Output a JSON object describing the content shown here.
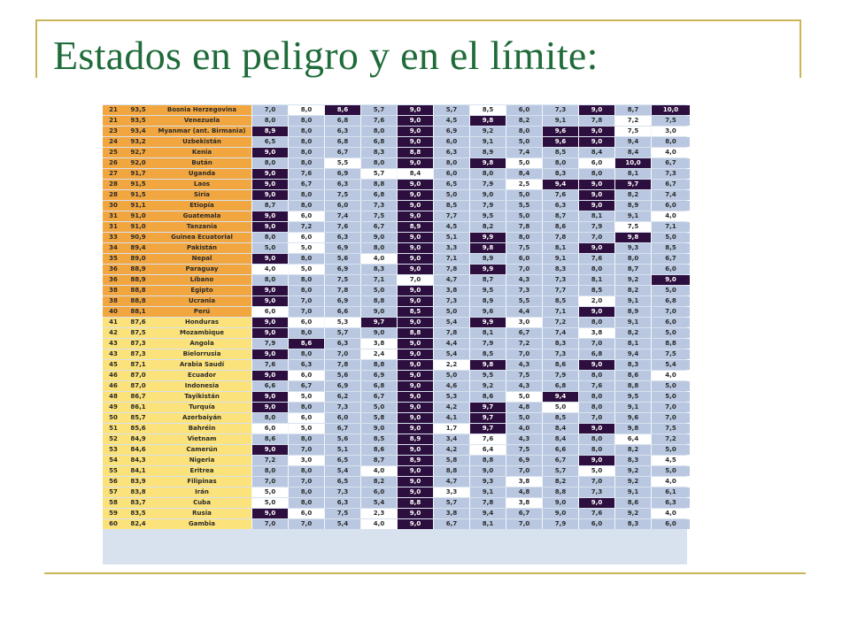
{
  "slide": {
    "title": "Estados en peligro y en el límite:"
  },
  "colors": {
    "title": "#1f6b3a",
    "rule": "#c9b458",
    "group_a": "#f2a640",
    "group_b": "#fbe27a",
    "cell_default": "#b9c8e0",
    "cell_white": "#ffffff",
    "cell_dark": "#2c0f3e"
  },
  "table": {
    "rows": [
      {
        "rank": "21",
        "score": "93,5",
        "country": "Bosnia Herzegovina",
        "group": "a",
        "values": [
          "7,0",
          "8,0",
          "8,6",
          "5,7",
          "9,0",
          "5,7",
          "8,5",
          "6,0",
          "7,3",
          "9,0",
          "8,7",
          "10,0"
        ],
        "shade": "kwdkdkwkkdkd"
      },
      {
        "rank": "21",
        "score": "93,5",
        "country": "Venezuela",
        "group": "a",
        "values": [
          "8,0",
          "8,0",
          "6,8",
          "7,6",
          "9,0",
          "4,5",
          "9,8",
          "8,2",
          "9,1",
          "7,8",
          "7,2",
          "7,5"
        ],
        "shade": "kkkkdkdkkkwk"
      },
      {
        "rank": "23",
        "score": "93,4",
        "country": "Myanmar (ant. Birmania)",
        "group": "a",
        "values": [
          "8,9",
          "8,0",
          "6,3",
          "8,0",
          "9,0",
          "6,9",
          "9,2",
          "8,0",
          "9,6",
          "9,0",
          "7,5",
          "3,0"
        ],
        "shade": "dkkkdkkkddww"
      },
      {
        "rank": "24",
        "score": "93,2",
        "country": "Uzbekistán",
        "group": "a",
        "values": [
          "6,5",
          "8,0",
          "6,8",
          "6,8",
          "9,0",
          "6,0",
          "9,1",
          "5,0",
          "9,6",
          "9,0",
          "9,4",
          "8,0"
        ],
        "shade": "kkkkdkkkddkk"
      },
      {
        "rank": "25",
        "score": "92,7",
        "country": "Kenia",
        "group": "a",
        "values": [
          "9,0",
          "8,0",
          "6,7",
          "8,3",
          "8,8",
          "6,3",
          "8,9",
          "7,4",
          "8,5",
          "8,4",
          "8,4",
          "4,0"
        ],
        "shade": "dkkkdkkkkkkw"
      },
      {
        "rank": "26",
        "score": "92,0",
        "country": "Bután",
        "group": "a",
        "values": [
          "8,0",
          "8,0",
          "5,5",
          "8,0",
          "9,0",
          "8,0",
          "9,8",
          "5,0",
          "8,0",
          "6,0",
          "10,0",
          "6,7"
        ],
        "shade": "kkwkdkdwkwdk"
      },
      {
        "rank": "27",
        "score": "91,7",
        "country": "Uganda",
        "group": "a",
        "values": [
          "9,0",
          "7,6",
          "6,9",
          "5,7",
          "8,4",
          "6,0",
          "8,0",
          "8,4",
          "8,3",
          "8,0",
          "8,1",
          "7,3"
        ],
        "shade": "dkkwwkkkkkkk"
      },
      {
        "rank": "28",
        "score": "91,5",
        "country": "Laos",
        "group": "a",
        "values": [
          "9,0",
          "6,7",
          "6,3",
          "8,8",
          "9,0",
          "6,5",
          "7,9",
          "2,5",
          "9,4",
          "9,0",
          "9,7",
          "6,7"
        ],
        "shade": "dkkkdkkwdddk"
      },
      {
        "rank": "28",
        "score": "91,5",
        "country": "Siria",
        "group": "a",
        "values": [
          "9,0",
          "8,0",
          "7,5",
          "6,8",
          "9,0",
          "5,0",
          "9,0",
          "5,0",
          "7,6",
          "9,0",
          "8,2",
          "7,4"
        ],
        "shade": "dkkkdkkkkdkk"
      },
      {
        "rank": "30",
        "score": "91,1",
        "country": "Etiopía",
        "group": "a",
        "values": [
          "8,7",
          "8,0",
          "6,0",
          "7,3",
          "9,0",
          "8,5",
          "7,9",
          "5,5",
          "6,3",
          "9,0",
          "8,9",
          "6,0"
        ],
        "shade": "kkkkdkkkkdkk"
      },
      {
        "rank": "31",
        "score": "91,0",
        "country": "Guatemala",
        "group": "a",
        "values": [
          "9,0",
          "6,0",
          "7,4",
          "7,5",
          "9,0",
          "7,7",
          "9,5",
          "5,0",
          "8,7",
          "8,1",
          "9,1",
          "4,0"
        ],
        "shade": "dwkkdkkkkkkw"
      },
      {
        "rank": "31",
        "score": "91,0",
        "country": "Tanzania",
        "group": "a",
        "values": [
          "9,0",
          "7,2",
          "7,6",
          "6,7",
          "8,9",
          "4,5",
          "8,2",
          "7,8",
          "8,6",
          "7,9",
          "7,5",
          "7,1"
        ],
        "shade": "dkkkdkkkkkwk"
      },
      {
        "rank": "33",
        "score": "90,9",
        "country": "Guinea Ecuatorial",
        "group": "a",
        "values": [
          "8,0",
          "6,0",
          "6,3",
          "9,0",
          "9,0",
          "5,1",
          "9,9",
          "8,0",
          "7,8",
          "7,0",
          "9,8",
          "5,0"
        ],
        "shade": "kwkkdkdkkkdk"
      },
      {
        "rank": "34",
        "score": "89,4",
        "country": "Pakistán",
        "group": "a",
        "values": [
          "5,0",
          "5,0",
          "6,9",
          "8,0",
          "9,0",
          "3,3",
          "9,8",
          "7,5",
          "8,1",
          "9,0",
          "9,3",
          "8,5"
        ],
        "shade": "kwkkdkdkkdkk"
      },
      {
        "rank": "35",
        "score": "89,0",
        "country": "Nepal",
        "group": "a",
        "values": [
          "9,0",
          "8,0",
          "5,6",
          "4,0",
          "9,0",
          "7,1",
          "8,9",
          "6,0",
          "9,1",
          "7,6",
          "8,0",
          "6,7"
        ],
        "shade": "dkkwdkkkkkkk"
      },
      {
        "rank": "36",
        "score": "88,9",
        "country": "Paraguay",
        "group": "a",
        "values": [
          "4,0",
          "5,0",
          "6,9",
          "8,3",
          "9,0",
          "7,8",
          "9,9",
          "7,0",
          "8,3",
          "8,0",
          "8,7",
          "6,0"
        ],
        "shade": "wwkkdkdkkkkk"
      },
      {
        "rank": "36",
        "score": "88,9",
        "country": "Líbano",
        "group": "a",
        "values": [
          "8,0",
          "8,0",
          "7,5",
          "7,1",
          "7,0",
          "4,7",
          "8,7",
          "4,3",
          "7,3",
          "8,1",
          "9,2",
          "9,0"
        ],
        "shade": "kkkkwkkkkkkd"
      },
      {
        "rank": "38",
        "score": "88,8",
        "country": "Egipto",
        "group": "a",
        "values": [
          "9,0",
          "8,0",
          "7,8",
          "5,0",
          "9,0",
          "3,8",
          "9,5",
          "7,3",
          "7,7",
          "8,5",
          "8,2",
          "5,0"
        ],
        "shade": "dkkkdkkkkkkk"
      },
      {
        "rank": "38",
        "score": "88,8",
        "country": "Ucrania",
        "group": "a",
        "values": [
          "9,0",
          "7,0",
          "6,9",
          "8,8",
          "9,0",
          "7,3",
          "8,9",
          "5,5",
          "8,5",
          "2,0",
          "9,1",
          "6,8"
        ],
        "shade": "dkkkdkkkkwkk"
      },
      {
        "rank": "40",
        "score": "88,1",
        "country": "Perú",
        "group": "a",
        "values": [
          "6,0",
          "7,0",
          "6,6",
          "9,0",
          "8,5",
          "5,0",
          "9,6",
          "4,4",
          "7,1",
          "9,0",
          "8,9",
          "7,0"
        ],
        "shade": "wkkkdkkkkdkk"
      },
      {
        "rank": "41",
        "score": "87,6",
        "country": "Honduras",
        "group": "b",
        "values": [
          "9,0",
          "6,0",
          "5,3",
          "9,7",
          "9,0",
          "5,4",
          "9,9",
          "3,0",
          "7,2",
          "8,0",
          "9,1",
          "6,0"
        ],
        "shade": "dwwddkdwkkkk"
      },
      {
        "rank": "42",
        "score": "87,5",
        "country": "Mozambique",
        "group": "b",
        "values": [
          "9,0",
          "8,0",
          "5,7",
          "9,0",
          "8,8",
          "7,8",
          "8,1",
          "6,7",
          "7,4",
          "3,8",
          "8,2",
          "5,0"
        ],
        "shade": "dkkkdkkkkwkk"
      },
      {
        "rank": "43",
        "score": "87,3",
        "country": "Angola",
        "group": "b",
        "values": [
          "7,9",
          "8,6",
          "6,3",
          "3,8",
          "9,0",
          "4,4",
          "7,9",
          "7,2",
          "8,3",
          "7,0",
          "8,1",
          "8,8"
        ],
        "shade": "kdkwdkkkkkkk"
      },
      {
        "rank": "43",
        "score": "87,3",
        "country": "Bielorrusia",
        "group": "b",
        "values": [
          "9,0",
          "8,0",
          "7,0",
          "2,4",
          "9,0",
          "5,4",
          "8,5",
          "7,0",
          "7,3",
          "6,8",
          "9,4",
          "7,5"
        ],
        "shade": "dkkwdkkkkkkk"
      },
      {
        "rank": "45",
        "score": "87,1",
        "country": "Arabia Saudí",
        "group": "b",
        "values": [
          "7,6",
          "6,3",
          "7,8",
          "8,8",
          "9,0",
          "2,2",
          "9,8",
          "4,3",
          "8,6",
          "9,0",
          "8,3",
          "5,4"
        ],
        "shade": "kkkkdwdkkdkk"
      },
      {
        "rank": "46",
        "score": "87,0",
        "country": "Ecuador",
        "group": "b",
        "values": [
          "9,0",
          "6,0",
          "5,6",
          "6,9",
          "9,0",
          "5,0",
          "9,5",
          "7,5",
          "7,9",
          "8,0",
          "8,6",
          "4,0"
        ],
        "shade": "dwkkdkkkkkkw"
      },
      {
        "rank": "46",
        "score": "87,0",
        "country": "Indonesia",
        "group": "b",
        "values": [
          "6,6",
          "6,7",
          "6,9",
          "6,8",
          "9,0",
          "4,6",
          "9,2",
          "4,3",
          "6,8",
          "7,6",
          "8,8",
          "5,0"
        ],
        "shade": "kkkkdkkkkkkk"
      },
      {
        "rank": "48",
        "score": "86,7",
        "country": "Tayikistán",
        "group": "b",
        "values": [
          "9,0",
          "5,0",
          "6,2",
          "6,7",
          "9,0",
          "5,3",
          "8,6",
          "5,0",
          "9,4",
          "8,0",
          "9,5",
          "5,0"
        ],
        "shade": "dwkkdkkwdkkk"
      },
      {
        "rank": "49",
        "score": "86,1",
        "country": "Turquía",
        "group": "b",
        "values": [
          "9,0",
          "8,0",
          "7,3",
          "5,0",
          "9,0",
          "4,2",
          "9,7",
          "4,8",
          "5,0",
          "8,0",
          "9,1",
          "7,0"
        ],
        "shade": "dkkkdkdkwkkk"
      },
      {
        "rank": "50",
        "score": "85,7",
        "country": "Azerbaiyán",
        "group": "b",
        "values": [
          "8,0",
          "6,0",
          "6,0",
          "5,8",
          "9,0",
          "4,1",
          "9,7",
          "5,0",
          "8,5",
          "7,0",
          "9,6",
          "7,0"
        ],
        "shade": "kwkkdkdkkkkk"
      },
      {
        "rank": "51",
        "score": "85,6",
        "country": "Bahréin",
        "group": "b",
        "values": [
          "6,0",
          "5,0",
          "6,7",
          "9,0",
          "9,0",
          "1,7",
          "9,7",
          "4,0",
          "8,4",
          "9,0",
          "9,8",
          "7,5"
        ],
        "shade": "wwkkdwdkkdkk"
      },
      {
        "rank": "52",
        "score": "84,9",
        "country": "Vietnam",
        "group": "b",
        "values": [
          "8,6",
          "8,0",
          "5,6",
          "8,5",
          "8,9",
          "3,4",
          "7,6",
          "4,3",
          "8,4",
          "8,0",
          "6,4",
          "7,2"
        ],
        "shade": "kkkkdkwkkkwk"
      },
      {
        "rank": "53",
        "score": "84,6",
        "country": "Camerún",
        "group": "b",
        "values": [
          "9,0",
          "7,0",
          "5,1",
          "8,6",
          "9,0",
          "4,2",
          "6,4",
          "7,5",
          "6,6",
          "8,0",
          "8,2",
          "5,0"
        ],
        "shade": "dkkkdkwkkkkk"
      },
      {
        "rank": "54",
        "score": "84,3",
        "country": "Nigeria",
        "group": "b",
        "values": [
          "7,2",
          "3,0",
          "6,5",
          "8,7",
          "8,9",
          "5,8",
          "8,8",
          "6,9",
          "6,7",
          "9,0",
          "8,3",
          "4,5"
        ],
        "shade": "kwkkdkkkkdkw"
      },
      {
        "rank": "55",
        "score": "84,1",
        "country": "Eritrea",
        "group": "b",
        "values": [
          "8,0",
          "8,0",
          "5,4",
          "4,0",
          "9,0",
          "8,8",
          "9,0",
          "7,0",
          "5,7",
          "5,0",
          "9,2",
          "5,0"
        ],
        "shade": "kkkwdkkkkwkk"
      },
      {
        "rank": "56",
        "score": "83,9",
        "country": "Filipinas",
        "group": "b",
        "values": [
          "7,0",
          "7,0",
          "6,5",
          "8,2",
          "9,0",
          "4,7",
          "9,3",
          "3,8",
          "8,2",
          "7,0",
          "9,2",
          "4,0"
        ],
        "shade": "kkkkdkkwkkkw"
      },
      {
        "rank": "57",
        "score": "83,8",
        "country": "Irán",
        "group": "b",
        "values": [
          "5,0",
          "8,0",
          "7,3",
          "6,0",
          "9,0",
          "3,3",
          "9,1",
          "4,8",
          "8,8",
          "7,3",
          "9,1",
          "6,1"
        ],
        "shade": "wkkkdwkkkkkk"
      },
      {
        "rank": "58",
        "score": "83,7",
        "country": "Cuba",
        "group": "b",
        "values": [
          "5,0",
          "8,0",
          "6,3",
          "5,4",
          "8,8",
          "5,7",
          "7,8",
          "3,8",
          "9,0",
          "9,0",
          "8,6",
          "6,3"
        ],
        "shade": "wkkkdkkwkdkk"
      },
      {
        "rank": "59",
        "score": "83,5",
        "country": "Rusia",
        "group": "b",
        "values": [
          "9,0",
          "6,0",
          "7,5",
          "2,3",
          "9,0",
          "3,8",
          "9,4",
          "6,7",
          "9,0",
          "7,6",
          "9,2",
          "4,0"
        ],
        "shade": "dwkwdkkkkkkw"
      },
      {
        "rank": "60",
        "score": "82,4",
        "country": "Gambia",
        "group": "b",
        "values": [
          "7,0",
          "7,0",
          "5,4",
          "4,0",
          "9,0",
          "6,7",
          "8,1",
          "7,0",
          "7,9",
          "6,0",
          "8,3",
          "6,0"
        ],
        "shade": "kkkwdkkkkkkk"
      }
    ]
  }
}
